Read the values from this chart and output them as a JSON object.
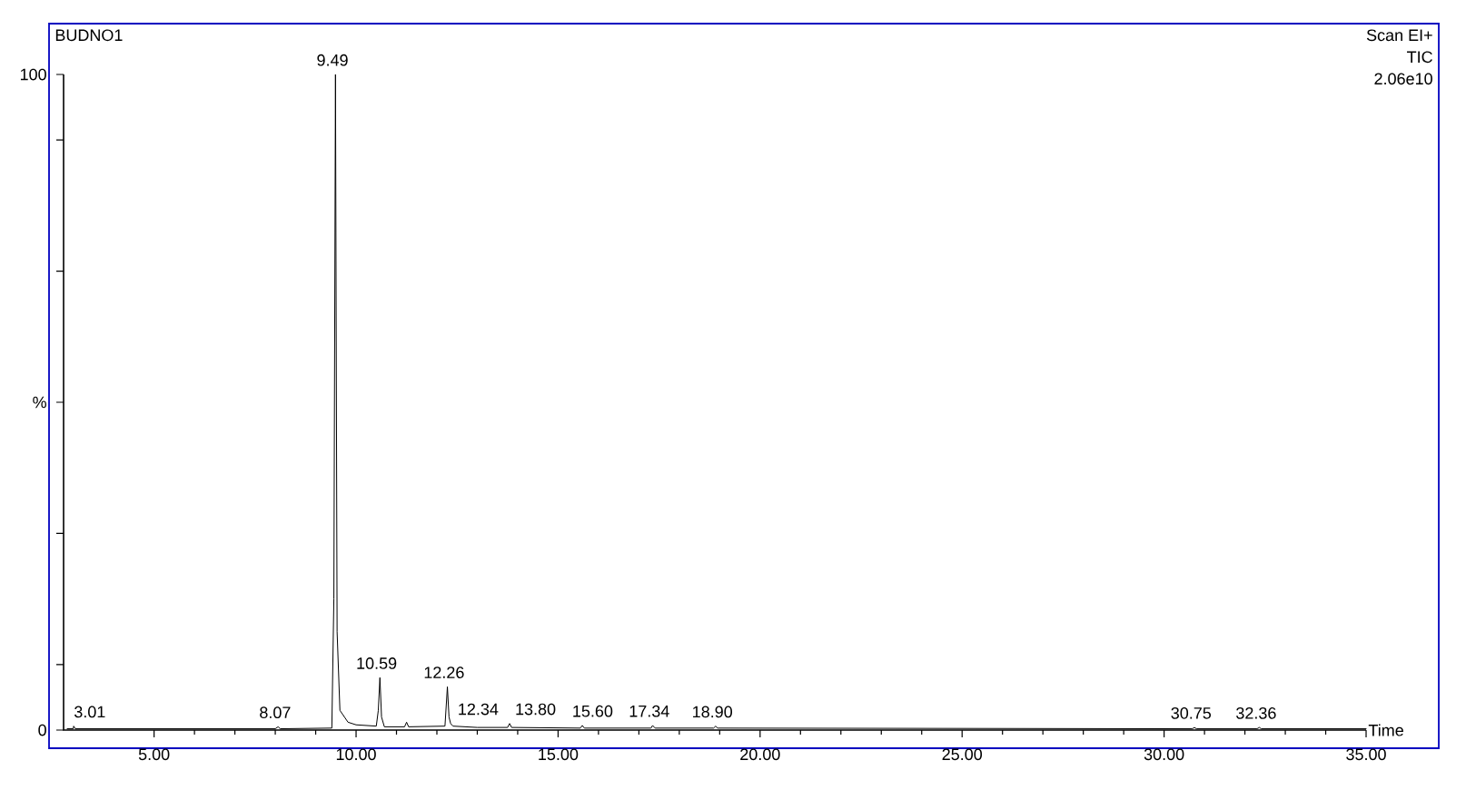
{
  "chart_data": {
    "type": "line",
    "title": "BUDNO1",
    "xlabel": "Time",
    "x": [
      2.85,
      3.0,
      3.01,
      3.05,
      8.0,
      8.07,
      8.12,
      9.4,
      9.45,
      9.49,
      9.53,
      9.6,
      9.8,
      10.0,
      10.5,
      10.55,
      10.59,
      10.63,
      10.7,
      11.2,
      11.25,
      11.3,
      12.2,
      12.26,
      12.3,
      12.34,
      12.4,
      13.0,
      13.75,
      13.8,
      13.85,
      15.55,
      15.6,
      15.65,
      17.3,
      17.34,
      17.4,
      18.85,
      18.9,
      18.95,
      30.7,
      30.75,
      30.8,
      32.3,
      32.36,
      32.4,
      35.0
    ],
    "series": [
      {
        "color": "#000000",
        "values": [
          0.2,
          0.2,
          0.6,
          0.2,
          0.2,
          0.5,
          0.2,
          0.3,
          20,
          100,
          15,
          3,
          1.2,
          0.8,
          0.6,
          3,
          8,
          2,
          0.5,
          0.5,
          1.2,
          0.5,
          0.6,
          6.6,
          2,
          1,
          0.6,
          0.4,
          0.4,
          1,
          0.4,
          0.3,
          0.7,
          0.3,
          0.3,
          0.7,
          0.3,
          0.3,
          0.6,
          0.3,
          0.2,
          0.4,
          0.2,
          0.2,
          0.4,
          0.2,
          0.2
        ]
      }
    ],
    "xlim": [
      2.76,
      35
    ],
    "ylim": [
      0,
      100
    ],
    "xticks": [
      {
        "value": 5,
        "label": "5.00"
      },
      {
        "value": 10,
        "label": "10.00"
      },
      {
        "value": 15,
        "label": "15.00"
      },
      {
        "value": 20,
        "label": "20.00"
      },
      {
        "value": 25,
        "label": "25.00"
      },
      {
        "value": 30,
        "label": "30.00"
      },
      {
        "value": 35,
        "label": "35.00"
      }
    ],
    "yticks": [
      0,
      {
        "value": 10,
        "label": null
      },
      {
        "value": 30,
        "label": null
      },
      {
        "value": 50,
        "label": "%"
      },
      {
        "value": 70,
        "label": null
      },
      {
        "value": 90,
        "label": null
      },
      100
    ],
    "annotations": [
      "Scan  EI+",
      "TIC",
      "2.06e10",
      {
        "text": "3.01",
        "x": 3.01,
        "y": 0.6
      },
      {
        "text": "8.07",
        "x": 8.07,
        "y": 0.5
      },
      {
        "text": "9.49",
        "x": 9.49,
        "y": 100
      },
      {
        "text": "10.59",
        "x": 10.59,
        "y": 8
      },
      {
        "text": "12.26",
        "x": 12.26,
        "y": 6.6
      },
      {
        "text": "12.34",
        "x": 12.34,
        "y": 1
      },
      {
        "text": "13.80",
        "x": 13.8,
        "y": 1
      },
      {
        "text": "15.60",
        "x": 15.6,
        "y": 0.7
      },
      {
        "text": "17.34",
        "x": 17.34,
        "y": 0.7
      },
      {
        "text": "18.90",
        "x": 18.9,
        "y": 0.6
      },
      {
        "text": "30.75",
        "x": 30.75,
        "y": 0.4
      },
      {
        "text": "32.36",
        "x": 32.36,
        "y": 0.4
      }
    ]
  }
}
